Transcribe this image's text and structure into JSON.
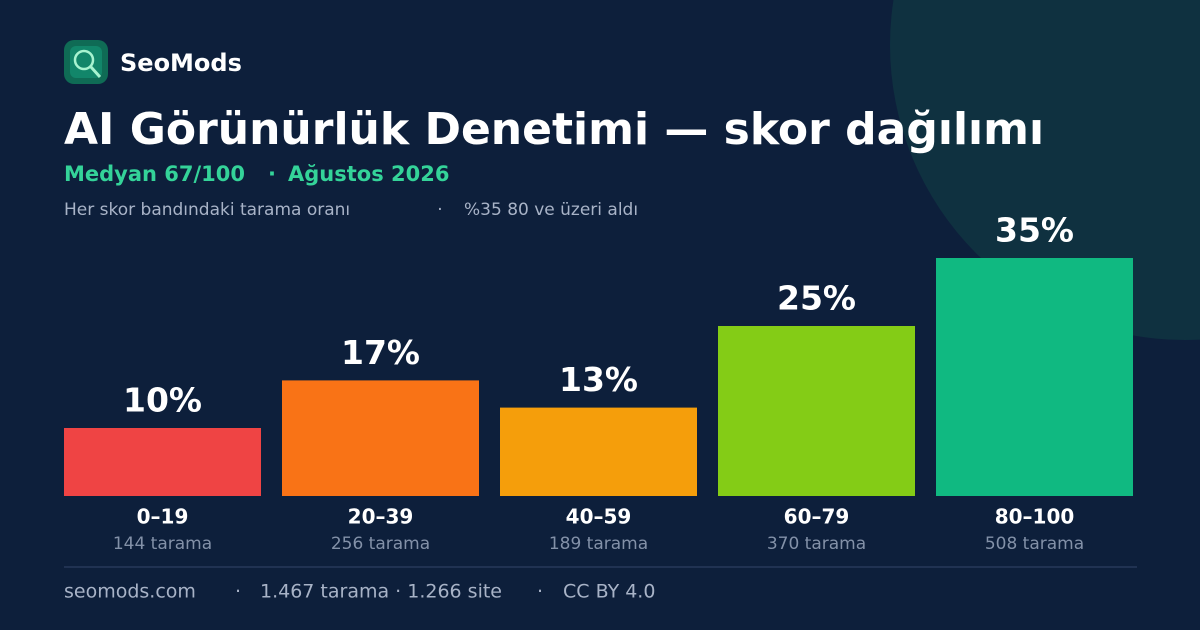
{
  "brand": "SeoMods",
  "chart_data": {
    "type": "bar",
    "title": "AI Görünürlük Denetimi — skor dağılımı",
    "subtitle": [
      "Medyan 67/100",
      "Ağustos 2026"
    ],
    "description": [
      "Her skor bandındaki tarama oranı",
      "%35 80 ve üzeri aldı"
    ],
    "categories": [
      "0–19",
      "20–39",
      "40–59",
      "60–79",
      "80–100"
    ],
    "category_notes": [
      "144 tarama",
      "256 tarama",
      "189 tarama",
      "370 tarama",
      "508 tarama"
    ],
    "values": [
      10,
      17,
      13,
      25,
      35
    ],
    "value_labels": [
      "10%",
      "17%",
      "13%",
      "25%",
      "35%"
    ],
    "colors": [
      "#ef4444",
      "#f97316",
      "#f59e0b",
      "#84cc16",
      "#10b981"
    ]
  },
  "footer": [
    "seomods.com",
    "1.467 tarama · 1.266 site",
    "CC BY 4.0"
  ]
}
